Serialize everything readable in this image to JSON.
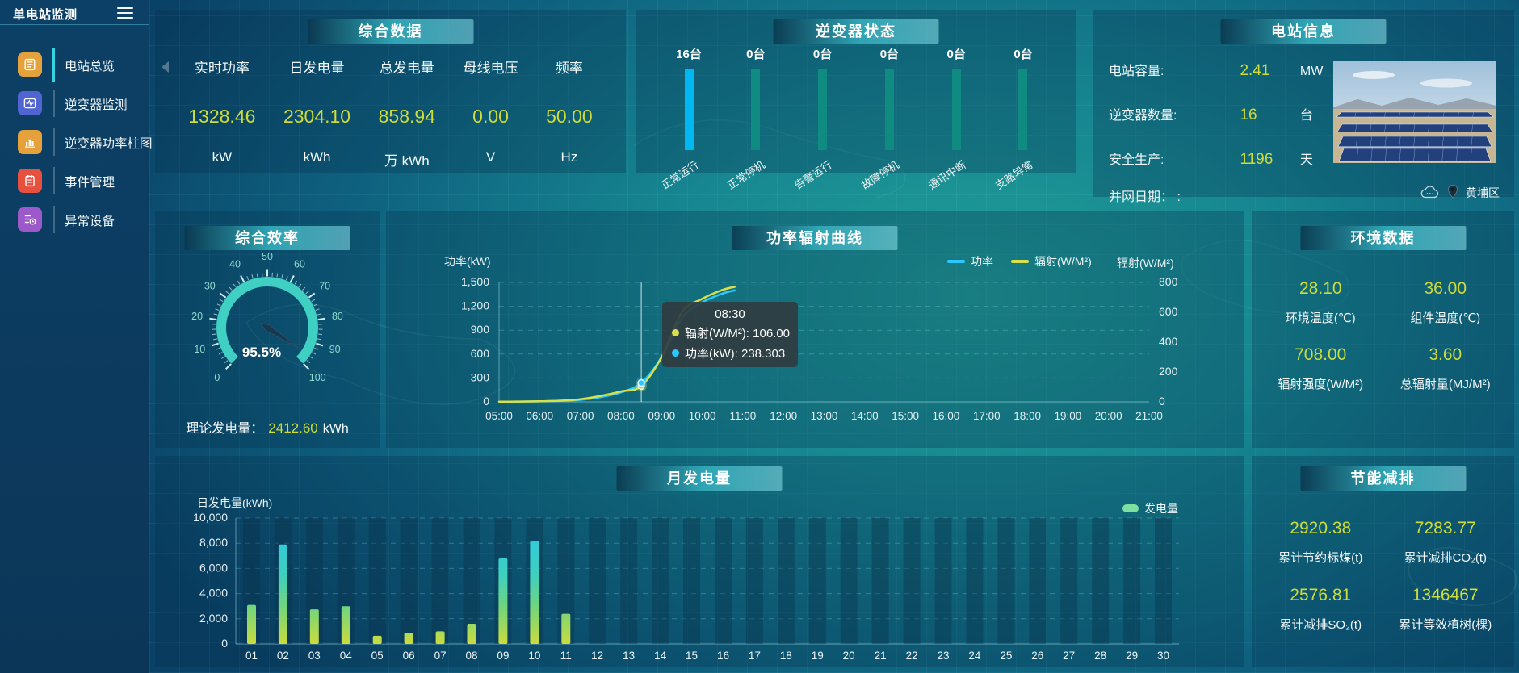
{
  "sidebar": {
    "title": "单电站监测",
    "items": [
      {
        "label": "电站总览",
        "icon": "overview",
        "color": "#e5a23c",
        "active": true
      },
      {
        "label": "逆变器监测",
        "icon": "monitor",
        "color": "#5065d1",
        "active": false
      },
      {
        "label": "逆变器功率柱图",
        "icon": "barchart",
        "color": "#e5a23c",
        "active": false
      },
      {
        "label": "事件管理",
        "icon": "event",
        "color": "#e8503e",
        "active": false
      },
      {
        "label": "异常设备",
        "icon": "abnormal",
        "color": "#9c59c9",
        "active": false
      }
    ]
  },
  "summary": {
    "title": "综合数据",
    "metrics": [
      {
        "label": "实时功率",
        "value": "1328.46",
        "unit": "kW"
      },
      {
        "label": "日发电量",
        "value": "2304.10",
        "unit": "kWh"
      },
      {
        "label": "总发电量",
        "value": "858.94",
        "unit": "万 kWh"
      },
      {
        "label": "母线电压",
        "value": "0.00",
        "unit": "V"
      },
      {
        "label": "频率",
        "value": "50.00",
        "unit": "Hz"
      }
    ]
  },
  "inverter_status": {
    "title": "逆变器状态"
  },
  "station_info": {
    "title": "电站信息",
    "rows": [
      {
        "label": "电站容量:",
        "value": "2.41",
        "unit": "MW"
      },
      {
        "label": "逆变器数量:",
        "value": "16",
        "unit": "台"
      },
      {
        "label": "安全生产:",
        "value": "1196",
        "unit": "天"
      }
    ],
    "grid_date_label": "并网日期：",
    "grid_date_value": ":",
    "location": "黄埔区"
  },
  "efficiency": {
    "title": "综合效率",
    "theoretical_label": "理论发电量：",
    "theoretical_value": "2412.60",
    "theoretical_unit": "kWh"
  },
  "power_curve": {
    "title": "功率辐射曲线"
  },
  "environment": {
    "title": "环境数据",
    "metrics": [
      {
        "value": "28.10",
        "label": "环境温度(℃)"
      },
      {
        "value": "36.00",
        "label": "组件温度(℃)"
      },
      {
        "value": "708.00",
        "label": "辐射强度(W/M²)"
      },
      {
        "value": "3.60",
        "label": "总辐射量(MJ/M²)"
      }
    ]
  },
  "monthly": {
    "title": "月发电量"
  },
  "saving": {
    "title": "节能减排",
    "metrics": [
      {
        "value": "2920.38",
        "label": "累计节约标煤(t)"
      },
      {
        "value": "7283.77",
        "label": "累计减排CO₂(t)"
      },
      {
        "value": "2576.81",
        "label": "累计减排SO₂(t)"
      },
      {
        "value": "1346467",
        "label": "累计等效植树(棵)"
      }
    ]
  },
  "colors": {
    "accent_value": "#cddc39",
    "power_line": "#29c8ff",
    "radiation_line": "#d8e04b",
    "bar_highlight": "#00b7f2",
    "bar_normal": "#0f8b81",
    "gauge": "#3fd0c3",
    "generation_legend": "#7ee0a0"
  },
  "chart_data": [
    {
      "id": "power_radiation_curve",
      "type": "line",
      "title": "功率辐射曲线",
      "left_axis": {
        "name": "功率(kW)",
        "ticks": [
          "1,500",
          "1,200",
          "900",
          "600",
          "300",
          "0"
        ],
        "max": 1500
      },
      "right_axis": {
        "name": "辐射(W/M²)",
        "ticks": [
          "800",
          "600",
          "400",
          "200",
          "0"
        ],
        "max": 800
      },
      "x_labels": [
        "05:00",
        "06:00",
        "07:00",
        "08:00",
        "09:00",
        "10:00",
        "11:00",
        "12:00",
        "13:00",
        "14:00",
        "15:00",
        "16:00",
        "17:00",
        "18:00",
        "19:00",
        "20:00",
        "21:00"
      ],
      "x_hours_range": [
        0,
        16
      ],
      "legend": [
        {
          "name": "功率",
          "color": "#29c8ff"
        },
        {
          "name": "辐射(W/M²)",
          "color": "#d8e04b"
        }
      ],
      "series": [
        {
          "name": "功率",
          "axis": "left",
          "color": "#29c8ff",
          "points": [
            [
              0,
              2
            ],
            [
              0.5,
              3
            ],
            [
              1,
              6
            ],
            [
              1.5,
              12
            ],
            [
              2,
              25
            ],
            [
              2.5,
              60
            ],
            [
              3,
              120
            ],
            [
              3.5,
              238.303
            ],
            [
              4,
              560
            ],
            [
              4.5,
              1050
            ],
            [
              5,
              1250
            ],
            [
              5.5,
              1360
            ],
            [
              5.8,
              1400
            ]
          ]
        },
        {
          "name": "辐射(W/M²)",
          "axis": "right",
          "color": "#d8e04b",
          "points": [
            [
              0,
              1
            ],
            [
              0.5,
              2
            ],
            [
              1,
              4
            ],
            [
              1.5,
              8
            ],
            [
              2,
              18
            ],
            [
              2.5,
              40
            ],
            [
              3,
              70
            ],
            [
              3.5,
              106
            ],
            [
              4,
              300
            ],
            [
              4.5,
              600
            ],
            [
              5,
              690
            ],
            [
              5.5,
              750
            ],
            [
              5.8,
              770
            ]
          ]
        }
      ],
      "hover": {
        "t": 3.5,
        "time": "08:30",
        "rows": [
          {
            "label": "辐射(W/M²)",
            "value": "106.00",
            "color": "#d8e04b"
          },
          {
            "label": "功率(kW)",
            "value": "238.303",
            "color": "#29c8ff"
          }
        ]
      }
    },
    {
      "id": "monthly_generation",
      "type": "bar",
      "title": "月发电量",
      "ylabel": "日发电量(kWh)",
      "y_ticks": [
        "10,000",
        "8,000",
        "6,000",
        "4,000",
        "2,000",
        "0"
      ],
      "ymax": 10000,
      "categories": [
        "01",
        "02",
        "03",
        "04",
        "05",
        "06",
        "07",
        "08",
        "09",
        "10",
        "11",
        "12",
        "13",
        "14",
        "15",
        "16",
        "17",
        "18",
        "19",
        "20",
        "21",
        "22",
        "23",
        "24",
        "25",
        "26",
        "27",
        "28",
        "29",
        "30"
      ],
      "values": [
        3100,
        7900,
        2750,
        3000,
        650,
        900,
        1000,
        1600,
        6800,
        8200,
        2400,
        0,
        0,
        0,
        0,
        0,
        0,
        0,
        0,
        0,
        0,
        0,
        0,
        0,
        0,
        0,
        0,
        0,
        0,
        0
      ],
      "legend": [
        {
          "name": "发电量",
          "color": "#7ee0a0"
        }
      ]
    },
    {
      "id": "efficiency_gauge",
      "type": "gauge",
      "min": 0,
      "max": 100,
      "value": 95.5,
      "display": "95.5%",
      "tick_labels": [
        "0",
        "10",
        "20",
        "30",
        "40",
        "50",
        "60",
        "70",
        "80",
        "90",
        "100"
      ]
    },
    {
      "id": "inverter_status_bars",
      "type": "bar",
      "categories": [
        "正常运行",
        "正常停机",
        "告警运行",
        "故障停机",
        "通讯中断",
        "支路异常"
      ],
      "values": [
        16,
        0,
        0,
        0,
        0,
        0
      ],
      "unit": "台",
      "bar_colors": [
        "#00b7f2",
        "#0f8b81",
        "#0f8b81",
        "#0f8b81",
        "#0f8b81",
        "#0f8b81"
      ]
    }
  ]
}
